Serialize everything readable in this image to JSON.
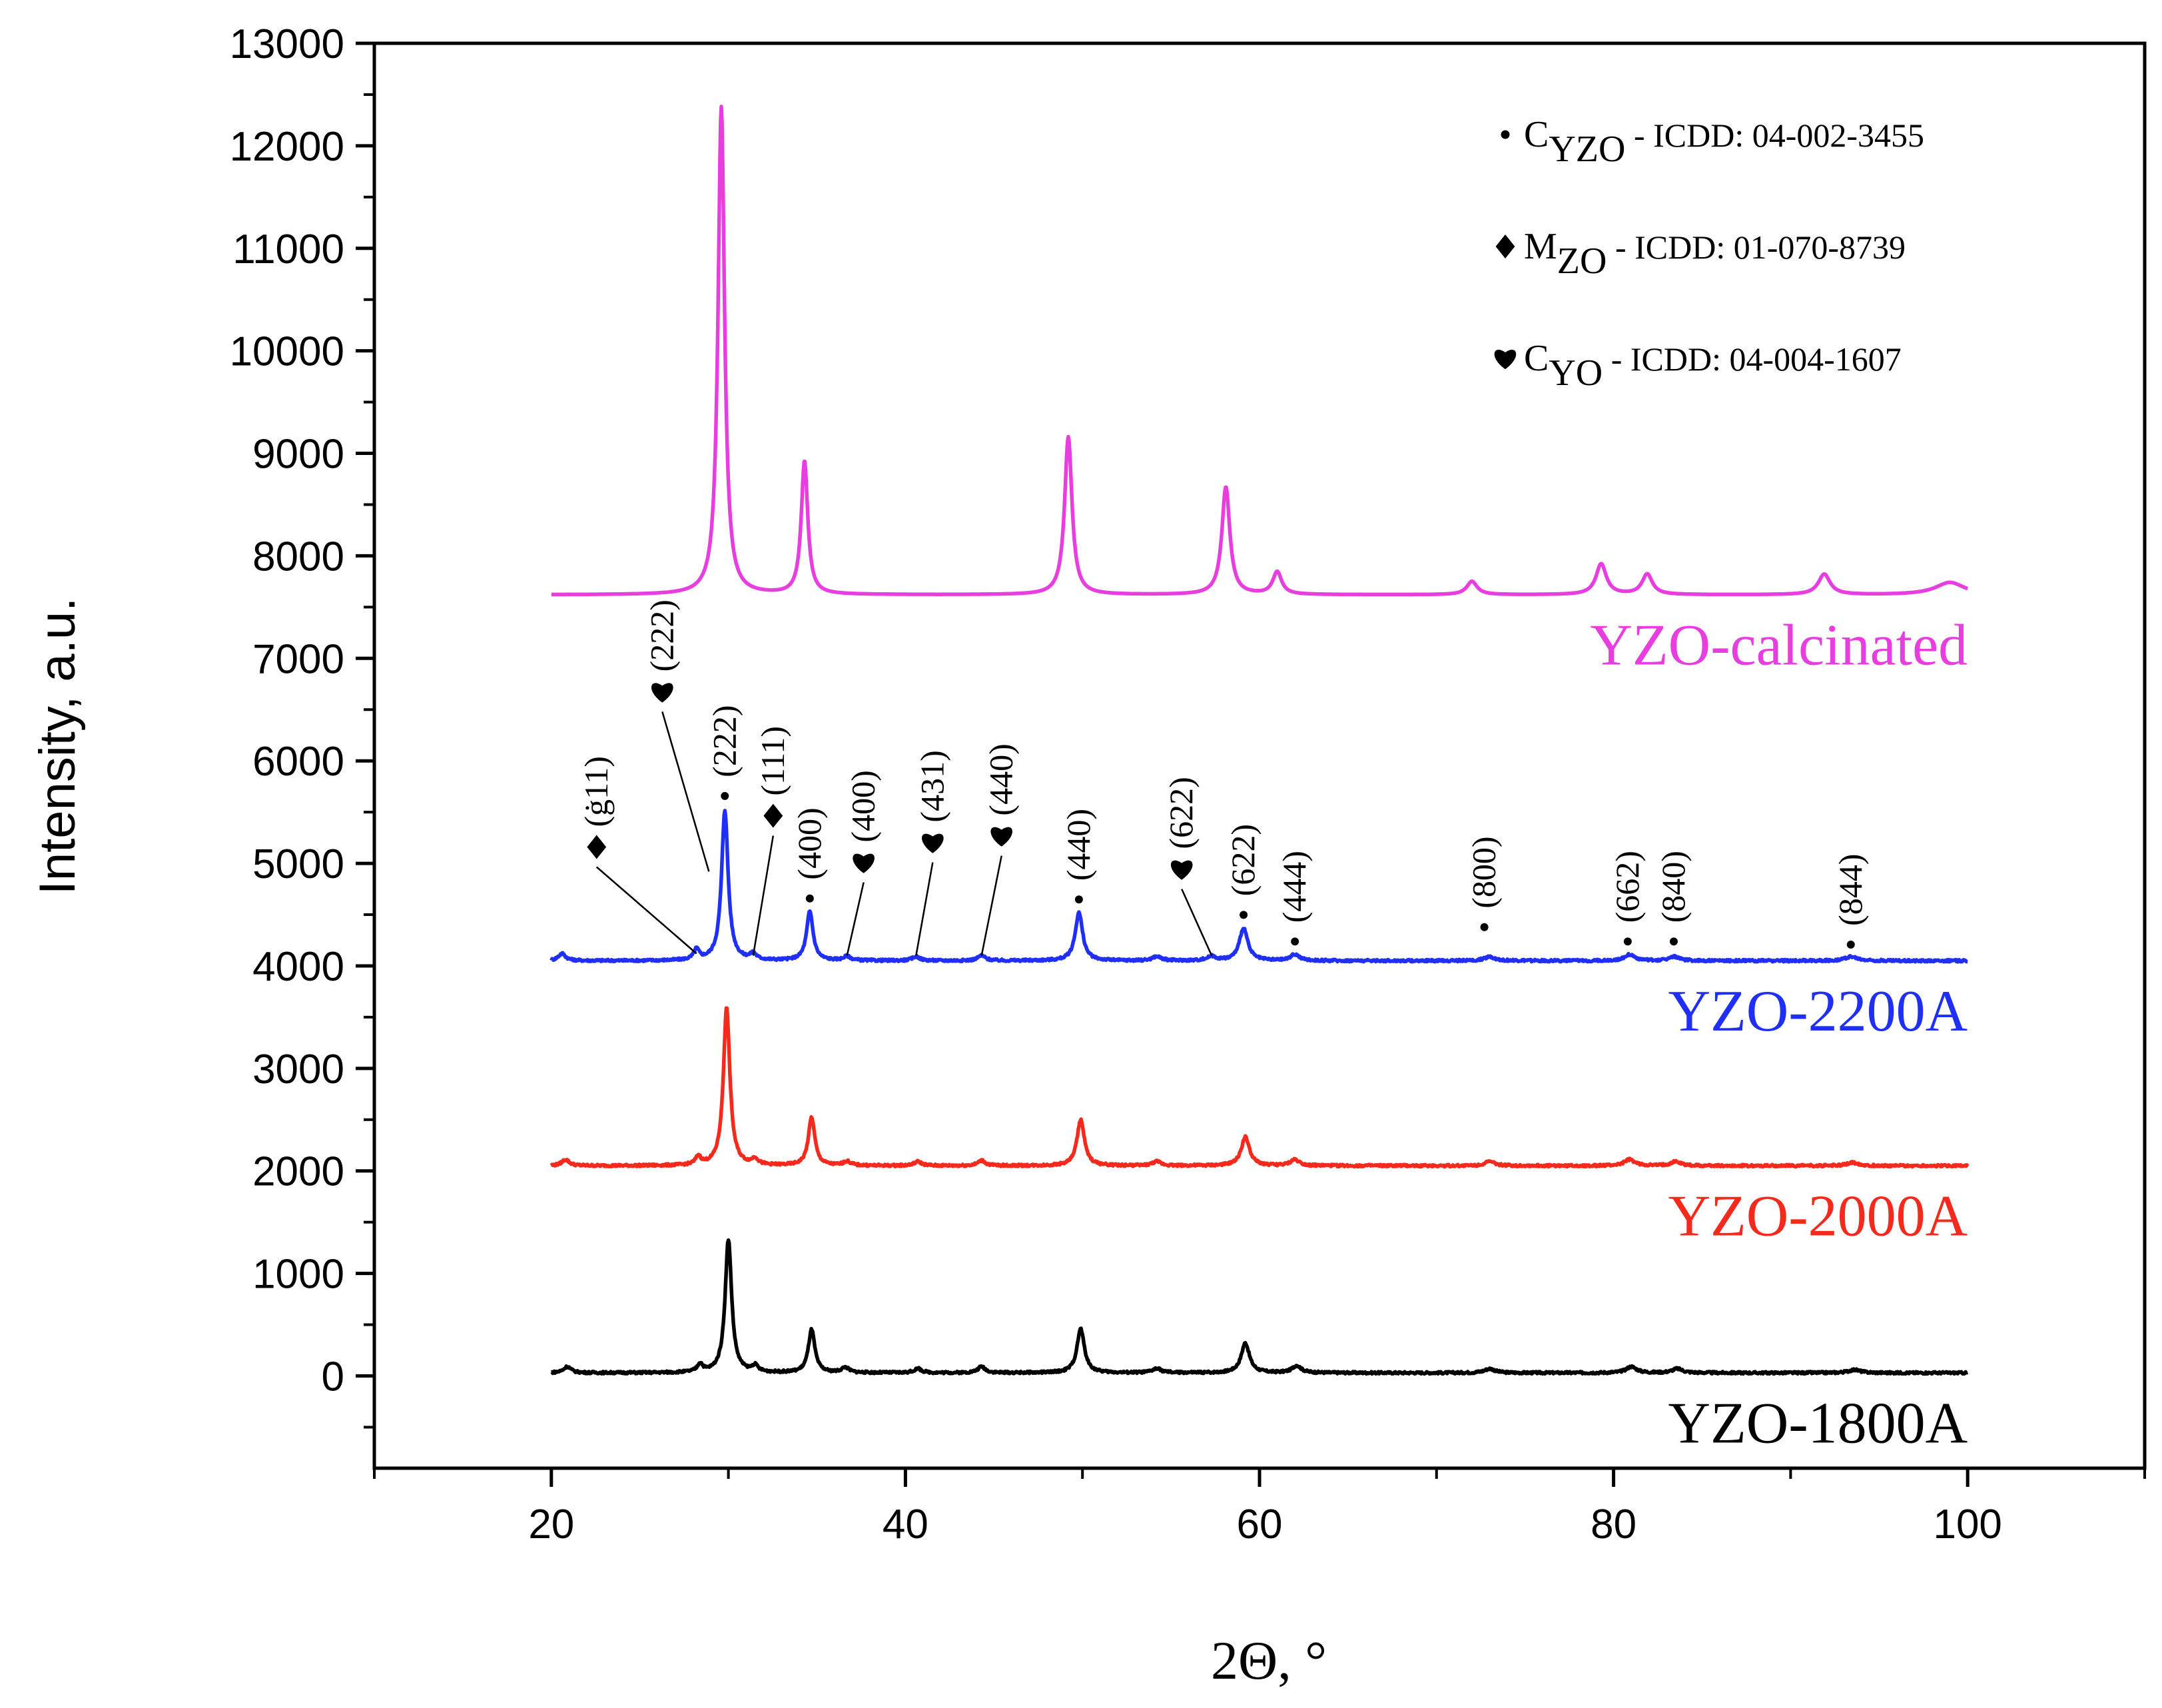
{
  "chart_data": {
    "type": "line",
    "title": "",
    "xlabel": "2Θ, °",
    "ylabel": "Intensity, a.u.",
    "xlim": [
      10,
      110
    ],
    "ylim": [
      -900,
      13000
    ],
    "xticks": [
      20,
      40,
      60,
      80,
      100
    ],
    "yticks": [
      0,
      1000,
      2000,
      3000,
      4000,
      5000,
      6000,
      7000,
      8000,
      9000,
      10000,
      11000,
      12000,
      13000
    ],
    "legend": [
      {
        "symbol": "dot",
        "text_main": "C",
        "text_sub": "YZO",
        "text_rest": " - ICDD: 04-002-3455"
      },
      {
        "symbol": "diamond",
        "text_main": "M",
        "text_sub": "ZO",
        "text_rest": " - ICDD: 01-070-8739"
      },
      {
        "symbol": "heart",
        "text_main": "C",
        "text_sub": "YO",
        "text_rest": " - ICDD: 04-004-1607"
      }
    ],
    "series": [
      {
        "name": "YZO-calcinated",
        "color": "#e83ee0",
        "baseline": 7620,
        "x_range": [
          20,
          100
        ],
        "peaks": [
          [
            29.6,
            4760,
            0.22
          ],
          [
            34.3,
            1300,
            0.22
          ],
          [
            49.2,
            1540,
            0.25
          ],
          [
            58.1,
            1050,
            0.27
          ],
          [
            61.0,
            220,
            0.3
          ],
          [
            72.0,
            130,
            0.35
          ],
          [
            79.3,
            300,
            0.35
          ],
          [
            81.9,
            200,
            0.35
          ],
          [
            91.9,
            200,
            0.4
          ],
          [
            99.0,
            120,
            1.0
          ]
        ]
      },
      {
        "name": "YZO-2200A",
        "color": "#1f2ff5",
        "baseline": 4050,
        "x_range": [
          20,
          100
        ],
        "peaks": [
          [
            20.6,
            70,
            0.25
          ],
          [
            28.2,
            100,
            0.18
          ],
          [
            29.8,
            1470,
            0.22
          ],
          [
            31.4,
            60,
            0.2
          ],
          [
            34.6,
            480,
            0.22
          ],
          [
            36.7,
            40,
            0.25
          ],
          [
            40.6,
            40,
            0.25
          ],
          [
            44.3,
            50,
            0.25
          ],
          [
            49.8,
            470,
            0.25
          ],
          [
            54.2,
            40,
            0.3
          ],
          [
            57.3,
            40,
            0.3
          ],
          [
            59.1,
            320,
            0.28
          ],
          [
            62.0,
            60,
            0.3
          ],
          [
            73.0,
            40,
            0.35
          ],
          [
            80.9,
            60,
            0.35
          ],
          [
            83.4,
            40,
            0.35
          ],
          [
            93.4,
            40,
            0.4
          ]
        ]
      },
      {
        "name": "YZO-2000A",
        "color": "#f52a1c",
        "baseline": 2050,
        "x_range": [
          20,
          100
        ],
        "peaks": [
          [
            20.8,
            60,
            0.25
          ],
          [
            28.3,
            80,
            0.18
          ],
          [
            29.9,
            1540,
            0.22
          ],
          [
            31.5,
            60,
            0.2
          ],
          [
            34.7,
            470,
            0.22
          ],
          [
            36.7,
            40,
            0.25
          ],
          [
            40.7,
            40,
            0.25
          ],
          [
            44.3,
            50,
            0.25
          ],
          [
            49.9,
            450,
            0.25
          ],
          [
            54.2,
            40,
            0.3
          ],
          [
            59.2,
            280,
            0.28
          ],
          [
            62.0,
            60,
            0.3
          ],
          [
            73.0,
            40,
            0.35
          ],
          [
            80.9,
            60,
            0.35
          ],
          [
            83.5,
            40,
            0.35
          ],
          [
            93.5,
            30,
            0.4
          ]
        ]
      },
      {
        "name": "YZO-1800A",
        "color": "#000000",
        "baseline": 30,
        "x_range": [
          20,
          100
        ],
        "peaks": [
          [
            20.9,
            60,
            0.25
          ],
          [
            28.4,
            80,
            0.18
          ],
          [
            30.0,
            1300,
            0.22
          ],
          [
            31.5,
            60,
            0.2
          ],
          [
            34.7,
            420,
            0.22
          ],
          [
            36.6,
            50,
            0.25
          ],
          [
            40.7,
            40,
            0.25
          ],
          [
            44.3,
            60,
            0.25
          ],
          [
            49.9,
            430,
            0.25
          ],
          [
            54.2,
            40,
            0.3
          ],
          [
            59.2,
            290,
            0.28
          ],
          [
            62.1,
            70,
            0.3
          ],
          [
            73.0,
            40,
            0.35
          ],
          [
            81.0,
            60,
            0.35
          ],
          [
            83.6,
            40,
            0.35
          ],
          [
            93.6,
            30,
            0.4
          ]
        ]
      }
    ],
    "annotations": [
      {
        "symbol": "diamond",
        "label": "(ġ11)",
        "x": 28.2,
        "y": 4120,
        "leader": true
      },
      {
        "symbol": "heart",
        "label": "(222)",
        "x": 28.9,
        "y": 4920,
        "leader": true
      },
      {
        "symbol": "dot",
        "label": "(222)",
        "x": 29.8,
        "y": 5580,
        "leader": false
      },
      {
        "symbol": "diamond",
        "label": "(111)",
        "x": 31.4,
        "y": 4100,
        "leader": true
      },
      {
        "symbol": "dot",
        "label": "(400)",
        "x": 34.6,
        "y": 4580,
        "leader": false
      },
      {
        "symbol": "heart",
        "label": "(400)",
        "x": 36.7,
        "y": 4100,
        "leader": true
      },
      {
        "symbol": "heart",
        "label": "(431)",
        "x": 40.6,
        "y": 4100,
        "leader": true
      },
      {
        "symbol": "heart",
        "label": "(440)",
        "x": 44.3,
        "y": 4100,
        "leader": true
      },
      {
        "symbol": "dot",
        "label": "(440)",
        "x": 49.8,
        "y": 4570,
        "leader": false
      },
      {
        "symbol": "heart",
        "label": "(622)",
        "x": 57.3,
        "y": 4100,
        "leader": true
      },
      {
        "symbol": "dot",
        "label": "(622)",
        "x": 59.1,
        "y": 4420,
        "leader": false
      },
      {
        "symbol": "dot",
        "label": "(444)",
        "x": 62.0,
        "y": 4160,
        "leader": false
      },
      {
        "symbol": "dot",
        "label": "(800)",
        "x": 72.7,
        "y": 4300,
        "leader": false
      },
      {
        "symbol": "dot",
        "label": "(662)",
        "x": 80.8,
        "y": 4160,
        "leader": false
      },
      {
        "symbol": "dot",
        "label": "(840)",
        "x": 83.4,
        "y": 4160,
        "leader": false
      },
      {
        "symbol": "dot",
        "label": "(844)",
        "x": 93.4,
        "y": 4130,
        "leader": false
      }
    ]
  }
}
